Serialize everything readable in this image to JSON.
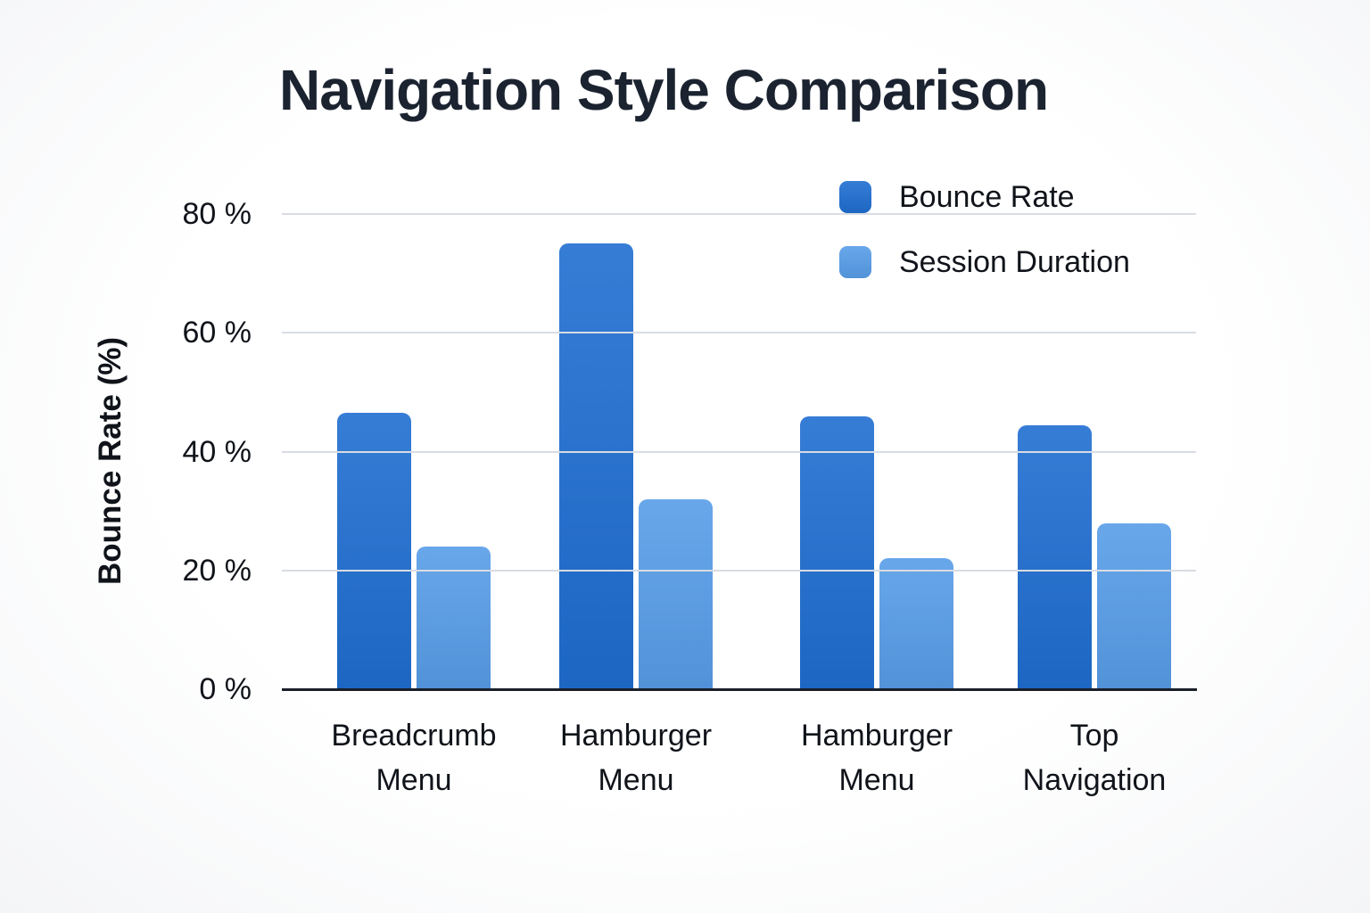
{
  "title": "Navigation Style Comparison",
  "chart_data": {
    "type": "bar",
    "title": "Navigation Style Comparison",
    "categories": [
      "Breadcrumb\nMenu",
      "Hamburger\nMenu",
      "Hamburger\nMenu",
      "Top\nNavigation"
    ],
    "series": [
      {
        "name": "Bounce Rate",
        "color": "#1f6ed1",
        "values": [
          46.5,
          75,
          46,
          44.5
        ]
      },
      {
        "name": "Session Duration",
        "color": "#589de8",
        "values": [
          24,
          32,
          22,
          28
        ]
      }
    ],
    "xlabel": "",
    "ylabel": "Bounce Rate (%)",
    "ylim": [
      0,
      80
    ],
    "yticks": [
      {
        "value": 80,
        "label": "80 %"
      },
      {
        "value": 60,
        "label": "60 %"
      },
      {
        "value": 40,
        "label": "40 %"
      },
      {
        "value": 20,
        "label": "20 %"
      },
      {
        "value": 0,
        "label": "0 %"
      }
    ],
    "grid": true,
    "gridline_color": "#d8dce3",
    "baseline_color": "#1a1f29",
    "text_color": "#10141a",
    "title_color": "#1b2330",
    "legend_position": "top-right"
  }
}
